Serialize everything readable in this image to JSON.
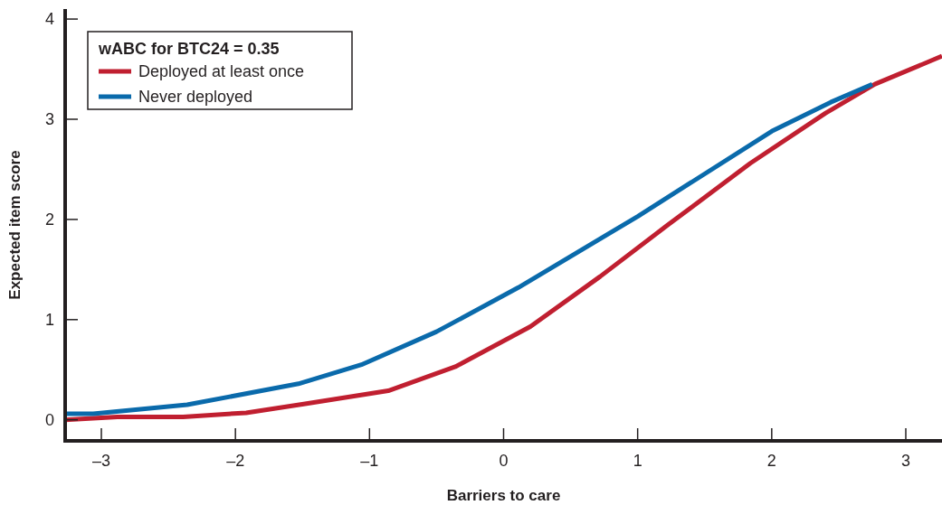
{
  "chart_data": {
    "type": "line",
    "xlabel": "Barriers to care",
    "ylabel": "Expected item score",
    "legend_title": "wABC for BTC24 = 0.35",
    "legend": "top left",
    "grid": false,
    "line_style": "solid",
    "marker": "none",
    "xlim": [
      -3.27,
      3.27
    ],
    "xticks": [
      {
        "value": -3,
        "label": "–3"
      },
      {
        "value": -2,
        "label": "–2"
      },
      {
        "value": -1,
        "label": "–1"
      },
      0,
      1,
      2,
      3
    ],
    "ylim": [
      -0.21,
      4.1
    ],
    "yticks": [
      0,
      1,
      2,
      3,
      4
    ],
    "series": [
      {
        "name": "Deployed at least once",
        "color": "#c01f30",
        "x": [
          -3.27,
          -2.88,
          -2.39,
          -1.92,
          -1.48,
          -0.86,
          -0.36,
          0.2,
          0.72,
          1.22,
          1.84,
          2.4,
          2.77,
          3.27
        ],
        "values": [
          0,
          0.03,
          0.03,
          0.07,
          0.16,
          0.29,
          0.53,
          0.93,
          1.43,
          1.94,
          2.56,
          3.06,
          3.35,
          3.63
        ]
      },
      {
        "name": "Never deployed",
        "color": "#0a6aab",
        "x": [
          -3.27,
          -3.06,
          -2.36,
          -1.53,
          -1.06,
          -0.5,
          0.11,
          1.0,
          2.0,
          2.44,
          2.75
        ],
        "values": [
          0.06,
          0.06,
          0.15,
          0.36,
          0.55,
          0.88,
          1.32,
          2.03,
          2.88,
          3.17,
          3.35
        ]
      }
    ]
  }
}
